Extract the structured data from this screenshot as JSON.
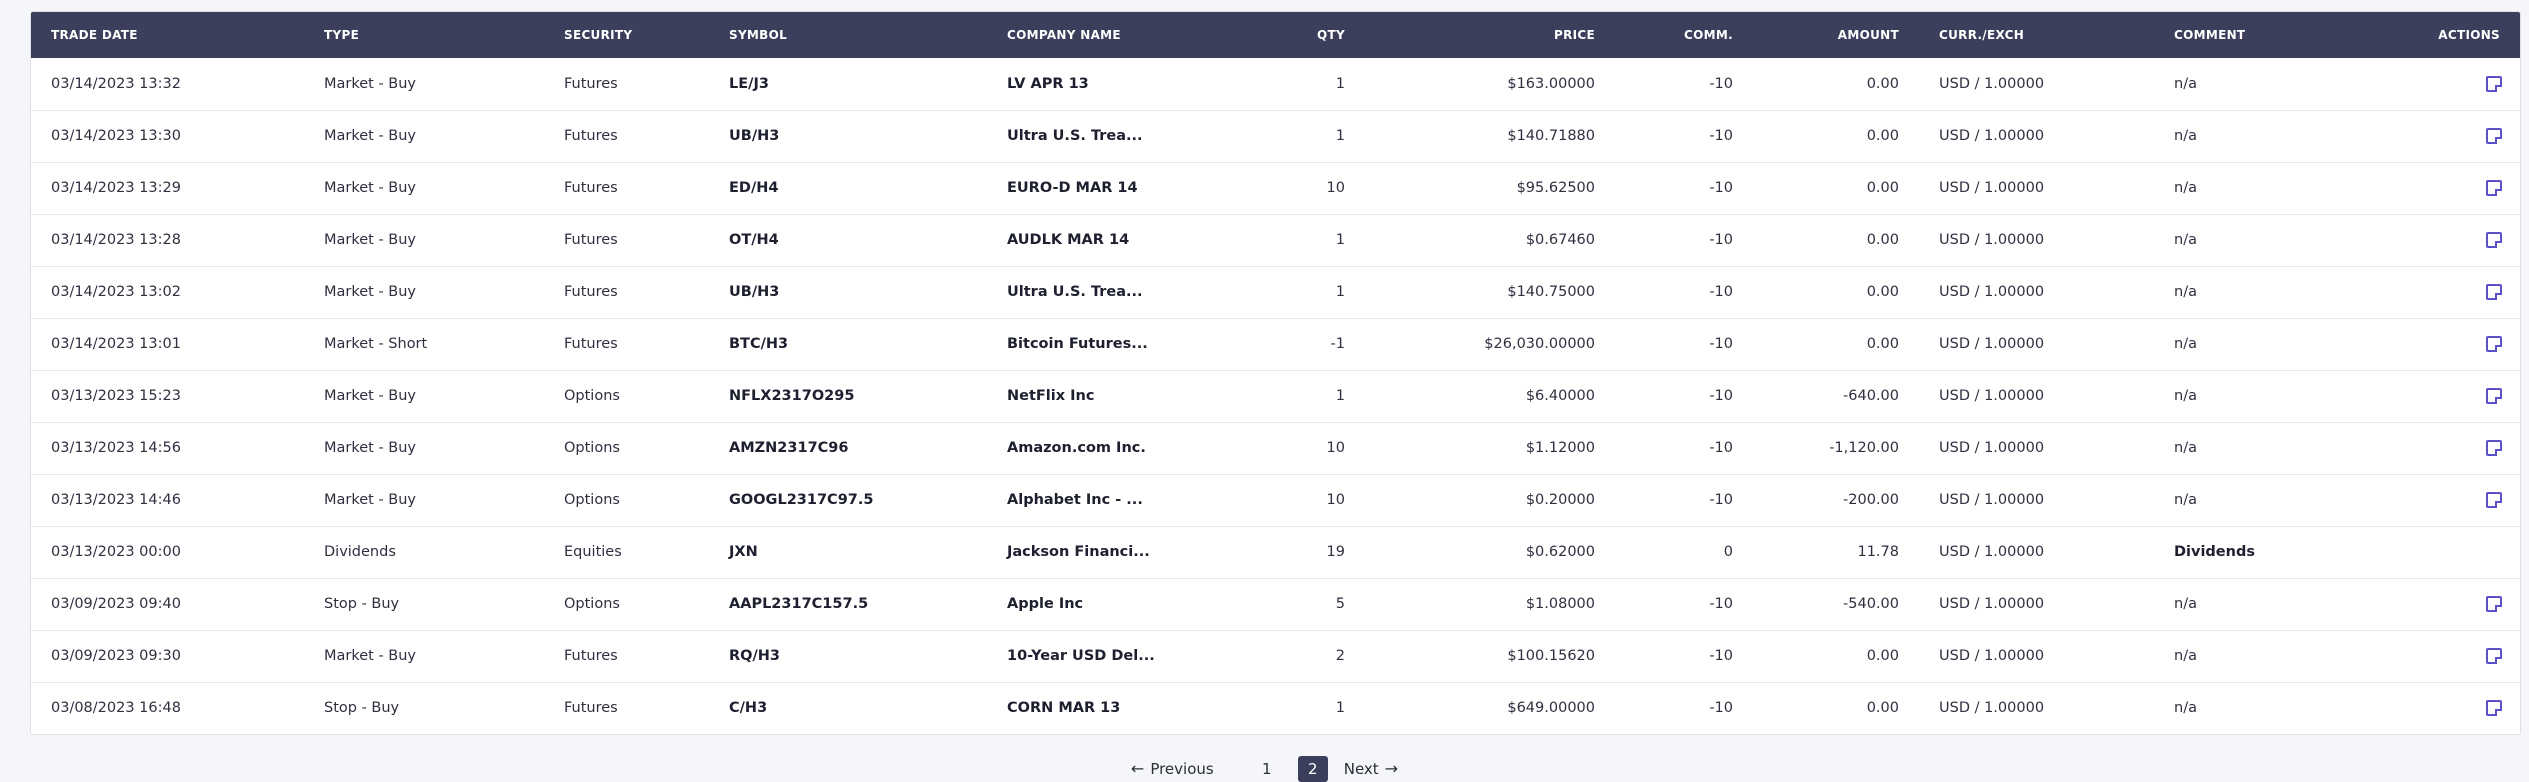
{
  "table": {
    "headers": {
      "trade_date": "TRADE DATE",
      "type": "TYPE",
      "security": "SECURITY",
      "symbol": "SYMBOL",
      "company_name": "COMPANY NAME",
      "qty": "QTY",
      "price": "PRICE",
      "comm": "COMM.",
      "amount": "AMOUNT",
      "curr_exch": "CURR./EXCH",
      "comment": "COMMENT",
      "actions": "ACTIONS"
    },
    "rows": [
      {
        "trade_date": "03/14/2023 13:32",
        "type": "Market - Buy",
        "security": "Futures",
        "symbol": "LE/J3",
        "company_name": "LV APR 13",
        "qty": "1",
        "price": "$163.00000",
        "comm": "-10",
        "amount": "0.00",
        "curr_exch": "USD / 1.00000",
        "comment": "n/a",
        "has_action": true
      },
      {
        "trade_date": "03/14/2023 13:30",
        "type": "Market - Buy",
        "security": "Futures",
        "symbol": "UB/H3",
        "company_name": "Ultra U.S. Trea...",
        "qty": "1",
        "price": "$140.71880",
        "comm": "-10",
        "amount": "0.00",
        "curr_exch": "USD / 1.00000",
        "comment": "n/a",
        "has_action": true
      },
      {
        "trade_date": "03/14/2023 13:29",
        "type": "Market - Buy",
        "security": "Futures",
        "symbol": "ED/H4",
        "company_name": "EURO-D MAR 14",
        "qty": "10",
        "price": "$95.62500",
        "comm": "-10",
        "amount": "0.00",
        "curr_exch": "USD / 1.00000",
        "comment": "n/a",
        "has_action": true
      },
      {
        "trade_date": "03/14/2023 13:28",
        "type": "Market - Buy",
        "security": "Futures",
        "symbol": "OT/H4",
        "company_name": "AUDLK MAR 14",
        "qty": "1",
        "price": "$0.67460",
        "comm": "-10",
        "amount": "0.00",
        "curr_exch": "USD / 1.00000",
        "comment": "n/a",
        "has_action": true
      },
      {
        "trade_date": "03/14/2023 13:02",
        "type": "Market - Buy",
        "security": "Futures",
        "symbol": "UB/H3",
        "company_name": "Ultra U.S. Trea...",
        "qty": "1",
        "price": "$140.75000",
        "comm": "-10",
        "amount": "0.00",
        "curr_exch": "USD / 1.00000",
        "comment": "n/a",
        "has_action": true
      },
      {
        "trade_date": "03/14/2023 13:01",
        "type": "Market - Short",
        "security": "Futures",
        "symbol": "BTC/H3",
        "company_name": "Bitcoin Futures...",
        "qty": "-1",
        "price": "$26,030.00000",
        "comm": "-10",
        "amount": "0.00",
        "curr_exch": "USD / 1.00000",
        "comment": "n/a",
        "has_action": true
      },
      {
        "trade_date": "03/13/2023 15:23",
        "type": "Market - Buy",
        "security": "Options",
        "symbol": "NFLX2317O295",
        "company_name": "NetFlix Inc",
        "qty": "1",
        "price": "$6.40000",
        "comm": "-10",
        "amount": "-640.00",
        "curr_exch": "USD / 1.00000",
        "comment": "n/a",
        "has_action": true
      },
      {
        "trade_date": "03/13/2023 14:56",
        "type": "Market - Buy",
        "security": "Options",
        "symbol": "AMZN2317C96",
        "company_name": "Amazon.com Inc.",
        "qty": "10",
        "price": "$1.12000",
        "comm": "-10",
        "amount": "-1,120.00",
        "curr_exch": "USD / 1.00000",
        "comment": "n/a",
        "has_action": true
      },
      {
        "trade_date": "03/13/2023 14:46",
        "type": "Market - Buy",
        "security": "Options",
        "symbol": "GOOGL2317C97.5",
        "company_name": "Alphabet Inc - ...",
        "qty": "10",
        "price": "$0.20000",
        "comm": "-10",
        "amount": "-200.00",
        "curr_exch": "USD / 1.00000",
        "comment": "n/a",
        "has_action": true
      },
      {
        "trade_date": "03/13/2023 00:00",
        "type": "Dividends",
        "security": "Equities",
        "symbol": "JXN",
        "company_name": "Jackson Financi...",
        "qty": "19",
        "price": "$0.62000",
        "comm": "0",
        "amount": "11.78",
        "curr_exch": "USD / 1.00000",
        "comment": "Dividends",
        "has_action": false
      },
      {
        "trade_date": "03/09/2023 09:40",
        "type": "Stop - Buy",
        "security": "Options",
        "symbol": "AAPL2317C157.5",
        "company_name": "Apple Inc",
        "qty": "5",
        "price": "$1.08000",
        "comm": "-10",
        "amount": "-540.00",
        "curr_exch": "USD / 1.00000",
        "comment": "n/a",
        "has_action": true
      },
      {
        "trade_date": "03/09/2023 09:30",
        "type": "Market - Buy",
        "security": "Futures",
        "symbol": "RQ/H3",
        "company_name": "10-Year USD Del...",
        "qty": "2",
        "price": "$100.15620",
        "comm": "-10",
        "amount": "0.00",
        "curr_exch": "USD / 1.00000",
        "comment": "n/a",
        "has_action": true
      },
      {
        "trade_date": "03/08/2023 16:48",
        "type": "Stop - Buy",
        "security": "Futures",
        "symbol": "C/H3",
        "company_name": "CORN MAR 13",
        "qty": "1",
        "price": "$649.00000",
        "comm": "-10",
        "amount": "0.00",
        "curr_exch": "USD / 1.00000",
        "comment": "n/a",
        "has_action": true
      }
    ],
    "action_icon": "edit-note-icon",
    "accent_color": "#5b50c8",
    "header_color": "#3c3f5c"
  },
  "pagination": {
    "previous_label": "Previous",
    "next_label": "Next",
    "pages": [
      "1",
      "2"
    ],
    "current_page": "2"
  }
}
